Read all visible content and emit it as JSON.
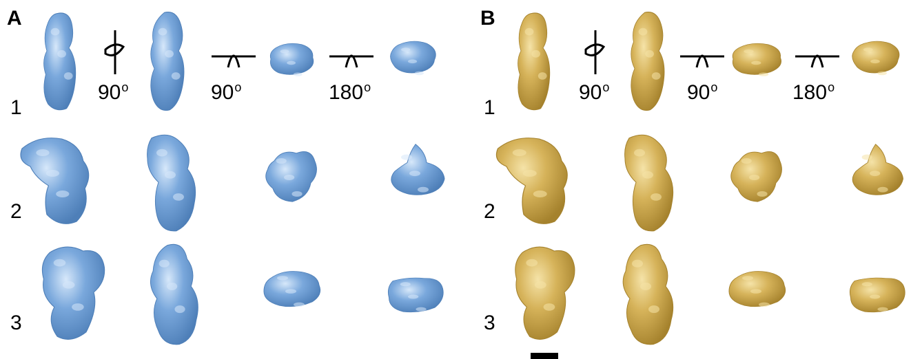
{
  "panels": [
    {
      "label": "A",
      "color": "#7aa8dc",
      "shade": "#4e7fb8",
      "highlight": "#d7e8fa"
    },
    {
      "label": "B",
      "color": "#d6b35a",
      "shade": "#a5822d",
      "highlight": "#f5e3a8"
    }
  ],
  "rows": [
    "1",
    "2",
    "3"
  ],
  "rotations": [
    {
      "axis": "vertical",
      "angle": "90",
      "unit": "o"
    },
    {
      "axis": "horizontal",
      "angle": "90",
      "unit": "o"
    },
    {
      "axis": "horizontal",
      "angle": "180",
      "unit": "o"
    }
  ],
  "scale_bar": {
    "present": true
  }
}
